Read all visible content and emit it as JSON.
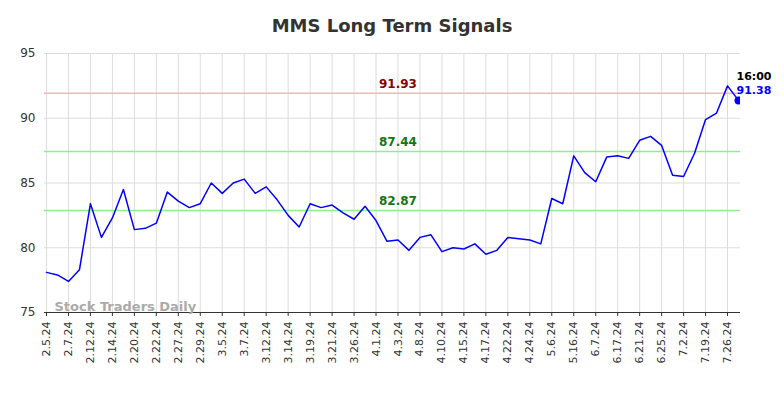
{
  "chart_data": {
    "type": "line",
    "title": "MMS Long Term Signals",
    "categories": [
      "2.5.24",
      null,
      "2.7.24",
      null,
      "2.12.24",
      null,
      "2.14.24",
      null,
      "2.20.24",
      null,
      "2.22.24",
      null,
      "2.27.24",
      null,
      "2.29.24",
      null,
      "3.5.24",
      null,
      "3.7.24",
      null,
      "3.12.24",
      null,
      "3.14.24",
      null,
      "3.19.24",
      null,
      "3.21.24",
      null,
      "3.26.24",
      null,
      "4.1.24",
      null,
      "4.3.24",
      null,
      "4.8.24",
      null,
      "4.10.24",
      null,
      "4.15.24",
      null,
      "4.17.24",
      null,
      "4.22.24",
      null,
      "4.24.24",
      null,
      "5.6.24",
      null,
      "5.16.24",
      null,
      "6.7.24",
      null,
      "6.17.24",
      null,
      "6.21.24",
      null,
      "6.25.24",
      null,
      "7.2.24",
      null,
      "7.19.24",
      null,
      "7.26.24",
      null
    ],
    "values": [
      78.1,
      77.9,
      77.4,
      78.3,
      83.4,
      80.8,
      82.3,
      84.5,
      81.4,
      81.5,
      81.9,
      84.3,
      83.6,
      83.1,
      83.4,
      85.0,
      84.2,
      85.0,
      85.3,
      84.2,
      84.7,
      83.7,
      82.5,
      81.6,
      83.4,
      83.1,
      83.3,
      82.7,
      82.2,
      83.2,
      82.1,
      80.5,
      80.6,
      79.8,
      80.8,
      81.0,
      79.7,
      80.0,
      79.9,
      80.3,
      79.5,
      79.8,
      80.8,
      80.7,
      80.6,
      80.3,
      83.8,
      83.4,
      87.1,
      85.8,
      85.1,
      87.0,
      87.1,
      86.9,
      88.3,
      88.6,
      87.9,
      85.6,
      85.5,
      87.3,
      89.9,
      90.4,
      92.5,
      91.38
    ],
    "color": "#0000ff",
    "ylim": [
      75,
      95
    ],
    "yticks": [
      75,
      80,
      85,
      90,
      95
    ],
    "grid": true,
    "reference_lines": [
      {
        "value": 91.93,
        "color": "#ffb3b3"
      },
      {
        "value": 87.44,
        "color": "#90ee90"
      },
      {
        "value": 82.87,
        "color": "#90ee90"
      }
    ],
    "last_point_time": "16:00",
    "watermark": "Stock Traders Daily"
  }
}
